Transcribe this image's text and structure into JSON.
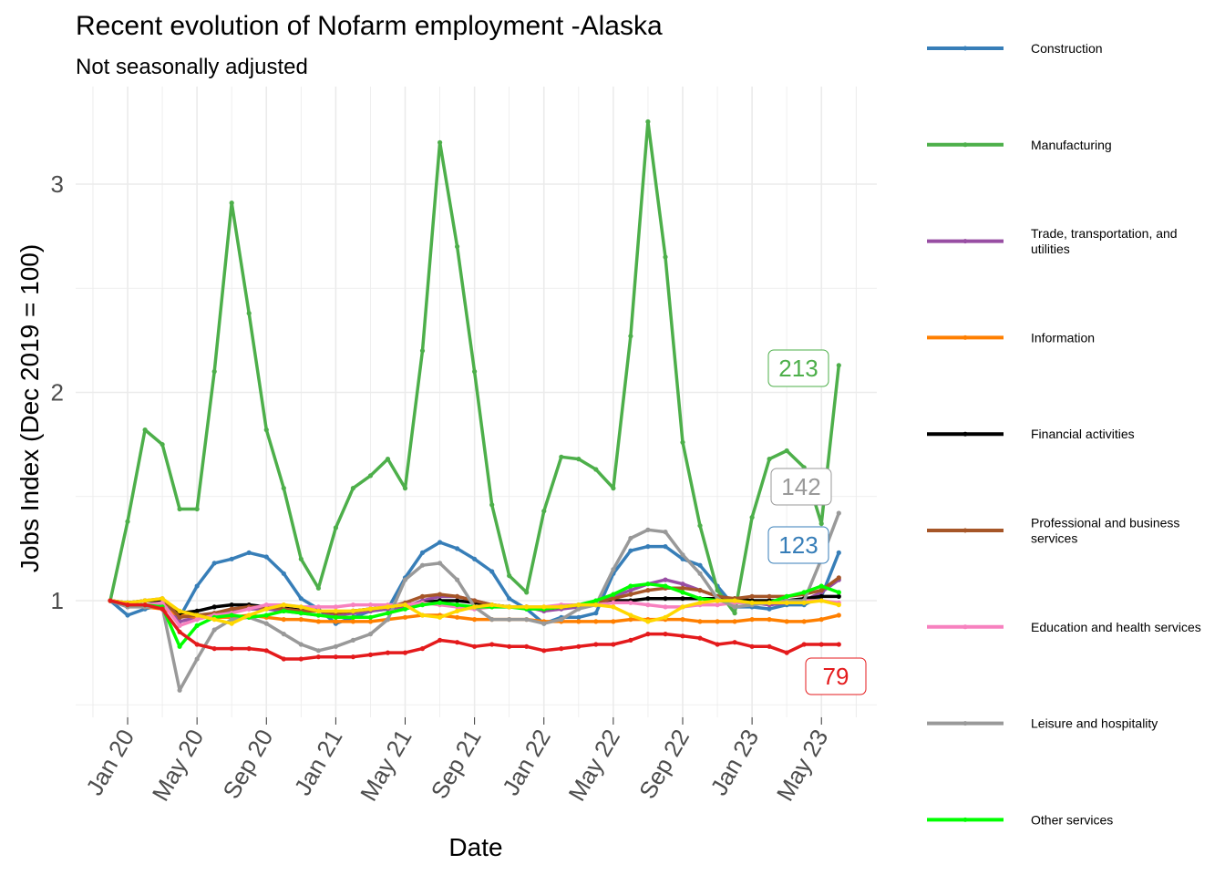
{
  "chart_data": {
    "type": "line",
    "title": "Recent evolution of Nofarm employment -Alaska",
    "subtitle": "Not seasonally adjusted",
    "xlabel": "Date",
    "ylabel": "Jobs Index (Dec 2019 = 100)",
    "x_tick_labels": [
      "Jan 20",
      "May 20",
      "Sep 20",
      "Jan 21",
      "May 21",
      "Sep 21",
      "Jan 22",
      "May 22",
      "Sep 22",
      "Jan 23",
      "May 23"
    ],
    "y_tick_labels": [
      "1",
      "2",
      "3"
    ],
    "ylim": [
      0.5,
      3.45
    ],
    "legend_position": "right",
    "grid": true,
    "x": [
      "Dec 19",
      "Jan 20",
      "Feb 20",
      "Mar 20",
      "Apr 20",
      "May 20",
      "Jun 20",
      "Jul 20",
      "Aug 20",
      "Sep 20",
      "Oct 20",
      "Nov 20",
      "Dec 20",
      "Jan 21",
      "Feb 21",
      "Mar 21",
      "Apr 21",
      "May 21",
      "Jun 21",
      "Jul 21",
      "Aug 21",
      "Sep 21",
      "Oct 21",
      "Nov 21",
      "Dec 21",
      "Jan 22",
      "Feb 22",
      "Mar 22",
      "Apr 22",
      "May 22",
      "Jun 22",
      "Jul 22",
      "Aug 22",
      "Sep 22",
      "Oct 22",
      "Nov 22",
      "Dec 22",
      "Jan 23",
      "Feb 23",
      "Mar 23",
      "Apr 23",
      "May 23",
      "Jun 23"
    ],
    "series": [
      {
        "name": "Construction",
        "color": "#377eb8",
        "end_label": "123",
        "values": [
          1.0,
          0.93,
          0.96,
          0.98,
          0.92,
          1.07,
          1.18,
          1.2,
          1.23,
          1.21,
          1.13,
          1.01,
          0.96,
          0.89,
          0.92,
          0.95,
          0.96,
          1.11,
          1.23,
          1.28,
          1.25,
          1.2,
          1.14,
          1.01,
          0.96,
          0.89,
          0.92,
          0.92,
          0.94,
          1.13,
          1.24,
          1.26,
          1.26,
          1.2,
          1.17,
          1.07,
          0.97,
          0.97,
          0.96,
          0.98,
          0.98,
          1.02,
          1.23
        ]
      },
      {
        "name": "Manufacturing",
        "color": "#4daf4a",
        "end_label": "213",
        "values": [
          1.0,
          1.38,
          1.82,
          1.75,
          1.44,
          1.44,
          2.1,
          2.91,
          2.38,
          1.82,
          1.54,
          1.2,
          1.06,
          1.35,
          1.54,
          1.6,
          1.68,
          1.54,
          2.2,
          3.2,
          2.7,
          2.1,
          1.46,
          1.12,
          1.04,
          1.43,
          1.69,
          1.68,
          1.63,
          1.54,
          2.27,
          3.3,
          2.65,
          1.76,
          1.36,
          1.05,
          0.94,
          1.4,
          1.68,
          1.72,
          1.64,
          1.37,
          2.13
        ]
      },
      {
        "name": "Trade, transportation, and utilities",
        "color": "#984ea3",
        "end_label": "",
        "values": [
          1.0,
          0.97,
          0.98,
          0.98,
          0.9,
          0.92,
          0.94,
          0.95,
          0.96,
          0.96,
          0.95,
          0.94,
          0.93,
          0.93,
          0.94,
          0.95,
          0.96,
          0.97,
          1.0,
          1.02,
          1.02,
          1.0,
          0.98,
          0.97,
          0.97,
          0.95,
          0.96,
          0.97,
          0.98,
          1.02,
          1.05,
          1.08,
          1.1,
          1.08,
          1.05,
          1.02,
          1.0,
          0.99,
          0.98,
          0.99,
          1.0,
          1.04,
          1.1
        ]
      },
      {
        "name": "Information",
        "color": "#ff7f00",
        "end_label": "",
        "values": [
          1.0,
          0.99,
          0.97,
          0.96,
          0.93,
          0.92,
          0.92,
          0.92,
          0.93,
          0.92,
          0.91,
          0.91,
          0.9,
          0.9,
          0.9,
          0.9,
          0.91,
          0.92,
          0.93,
          0.93,
          0.92,
          0.91,
          0.91,
          0.91,
          0.91,
          0.9,
          0.9,
          0.9,
          0.9,
          0.9,
          0.91,
          0.91,
          0.91,
          0.91,
          0.9,
          0.9,
          0.9,
          0.91,
          0.91,
          0.9,
          0.9,
          0.91,
          0.93
        ]
      },
      {
        "name": "Financial activities",
        "color": "#000000",
        "end_label": "",
        "values": [
          1.0,
          0.99,
          1.0,
          1.0,
          0.94,
          0.95,
          0.97,
          0.98,
          0.98,
          0.97,
          0.97,
          0.96,
          0.95,
          0.94,
          0.95,
          0.96,
          0.97,
          0.98,
          0.99,
          1.0,
          1.0,
          0.99,
          0.98,
          0.97,
          0.97,
          0.96,
          0.97,
          0.98,
          0.99,
          1.0,
          1.0,
          1.01,
          1.01,
          1.01,
          1.01,
          1.01,
          1.01,
          1.0,
          1.0,
          1.0,
          1.01,
          1.02,
          1.02
        ]
      },
      {
        "name": "Professional and business services",
        "color": "#a65628",
        "end_label": "",
        "values": [
          1.0,
          0.99,
          1.0,
          1.01,
          0.92,
          0.93,
          0.94,
          0.96,
          0.97,
          0.97,
          0.96,
          0.95,
          0.95,
          0.94,
          0.95,
          0.96,
          0.97,
          0.99,
          1.02,
          1.03,
          1.02,
          1.0,
          0.98,
          0.97,
          0.97,
          0.96,
          0.97,
          0.98,
          0.99,
          1.01,
          1.03,
          1.05,
          1.06,
          1.06,
          1.05,
          1.02,
          1.01,
          1.02,
          1.02,
          1.02,
          1.03,
          1.05,
          1.11
        ]
      },
      {
        "name": "Education and health services",
        "color": "#f781bf",
        "end_label": "",
        "values": [
          1.0,
          0.98,
          0.98,
          0.99,
          0.88,
          0.91,
          0.93,
          0.94,
          0.96,
          0.98,
          0.98,
          0.97,
          0.97,
          0.97,
          0.98,
          0.98,
          0.98,
          0.98,
          0.99,
          0.98,
          0.97,
          0.96,
          0.97,
          0.97,
          0.97,
          0.97,
          0.98,
          0.98,
          0.98,
          0.99,
          0.99,
          0.98,
          0.97,
          0.97,
          0.98,
          0.98,
          0.99,
          0.99,
          0.99,
          0.99,
          1.0,
          1.0,
          0.99
        ]
      },
      {
        "name": "Leisure and hospitality",
        "color": "#999999",
        "end_label": "142",
        "values": [
          1.0,
          0.97,
          0.97,
          0.97,
          0.57,
          0.72,
          0.86,
          0.91,
          0.92,
          0.89,
          0.84,
          0.79,
          0.76,
          0.78,
          0.81,
          0.84,
          0.91,
          1.1,
          1.17,
          1.18,
          1.1,
          0.97,
          0.91,
          0.91,
          0.91,
          0.89,
          0.91,
          0.96,
          0.98,
          1.15,
          1.3,
          1.34,
          1.33,
          1.22,
          1.13,
          1.01,
          0.97,
          0.98,
          0.99,
          1.0,
          1.0,
          1.2,
          1.42
        ]
      },
      {
        "name": "Other services",
        "color": "#00ff00",
        "end_label": "",
        "values": [
          1.0,
          0.98,
          0.98,
          0.97,
          0.78,
          0.88,
          0.92,
          0.93,
          0.92,
          0.93,
          0.95,
          0.94,
          0.93,
          0.92,
          0.92,
          0.92,
          0.94,
          0.96,
          0.98,
          0.99,
          0.98,
          0.97,
          0.97,
          0.97,
          0.96,
          0.96,
          0.97,
          0.98,
          1.0,
          1.03,
          1.07,
          1.08,
          1.07,
          1.04,
          1.01,
          1.0,
          1.0,
          0.99,
          0.99,
          1.02,
          1.04,
          1.07,
          1.04
        ]
      },
      {
        "name": "",
        "color": "#ffd700",
        "end_label": "",
        "values": [
          1.0,
          0.99,
          1.0,
          1.01,
          0.95,
          0.93,
          0.91,
          0.89,
          0.93,
          0.96,
          0.98,
          0.97,
          0.95,
          0.95,
          0.95,
          0.96,
          0.97,
          0.98,
          0.93,
          0.92,
          0.95,
          0.97,
          0.98,
          0.97,
          0.97,
          0.97,
          0.97,
          0.98,
          0.98,
          0.97,
          0.93,
          0.9,
          0.92,
          0.97,
          0.99,
          1.0,
          1.0,
          0.99,
          0.99,
          0.99,
          0.99,
          1.0,
          0.98
        ]
      },
      {
        "name": "",
        "color": "#e41a1c",
        "end_label": "79",
        "values": [
          1.0,
          0.98,
          0.98,
          0.96,
          0.85,
          0.79,
          0.77,
          0.77,
          0.77,
          0.76,
          0.72,
          0.72,
          0.73,
          0.73,
          0.73,
          0.74,
          0.75,
          0.75,
          0.77,
          0.81,
          0.8,
          0.78,
          0.79,
          0.78,
          0.78,
          0.76,
          0.77,
          0.78,
          0.79,
          0.79,
          0.81,
          0.84,
          0.84,
          0.83,
          0.82,
          0.79,
          0.8,
          0.78,
          0.78,
          0.75,
          0.79,
          0.79,
          0.79
        ]
      }
    ]
  }
}
